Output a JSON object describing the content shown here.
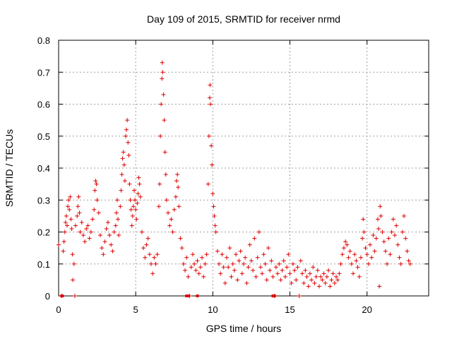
{
  "chart_data": {
    "type": "scatter",
    "title": "Day 109 of 2015, SRMTID for receiver nrmd",
    "xlabel": "GPS time / hours",
    "ylabel": "SRMTID / TECUs",
    "xlim": [
      0,
      24
    ],
    "ylim": [
      0,
      0.8
    ],
    "xticks": [
      0,
      5,
      10,
      15,
      20
    ],
    "xtick_labels": [
      "0",
      "5",
      "10",
      "15",
      "20"
    ],
    "yticks": [
      0,
      0.1,
      0.2,
      0.3,
      0.4,
      0.5,
      0.6,
      0.7,
      0.8
    ],
    "ytick_labels": [
      "0",
      "0.1",
      "0.2",
      "0.3",
      "0.4",
      "0.5",
      "0.6",
      "0.7",
      "0.8"
    ],
    "grid": true,
    "marker": "plus",
    "color": "#e00000",
    "series": [
      {
        "name": "SRMTID",
        "points": [
          [
            0.0,
            0.16
          ],
          [
            0.2,
            0.0
          ],
          [
            0.3,
            0.14
          ],
          [
            0.35,
            0.17
          ],
          [
            0.4,
            0.2
          ],
          [
            0.45,
            0.23
          ],
          [
            0.5,
            0.25
          ],
          [
            0.55,
            0.22
          ],
          [
            0.6,
            0.28
          ],
          [
            0.65,
            0.3
          ],
          [
            0.7,
            0.27
          ],
          [
            0.75,
            0.31
          ],
          [
            0.8,
            0.24
          ],
          [
            0.85,
            0.21
          ],
          [
            0.9,
            0.13
          ],
          [
            0.92,
            0.05
          ],
          [
            1.0,
            0.1
          ],
          [
            1.05,
            0.0
          ],
          [
            1.1,
            0.22
          ],
          [
            1.2,
            0.25
          ],
          [
            1.25,
            0.28
          ],
          [
            1.3,
            0.31
          ],
          [
            1.35,
            0.26
          ],
          [
            1.4,
            0.2
          ],
          [
            1.5,
            0.23
          ],
          [
            1.6,
            0.19
          ],
          [
            1.7,
            0.17
          ],
          [
            1.8,
            0.21
          ],
          [
            1.9,
            0.22
          ],
          [
            2.0,
            0.18
          ],
          [
            2.1,
            0.2
          ],
          [
            2.2,
            0.24
          ],
          [
            2.3,
            0.27
          ],
          [
            2.35,
            0.33
          ],
          [
            2.4,
            0.36
          ],
          [
            2.45,
            0.35
          ],
          [
            2.5,
            0.3
          ],
          [
            2.6,
            0.26
          ],
          [
            2.7,
            0.19
          ],
          [
            2.8,
            0.15
          ],
          [
            2.9,
            0.13
          ],
          [
            3.0,
            0.17
          ],
          [
            3.1,
            0.21
          ],
          [
            3.2,
            0.23
          ],
          [
            3.3,
            0.19
          ],
          [
            3.4,
            0.16
          ],
          [
            3.5,
            0.14
          ],
          [
            3.6,
            0.2
          ],
          [
            3.7,
            0.22
          ],
          [
            3.75,
            0.26
          ],
          [
            3.8,
            0.3
          ],
          [
            3.85,
            0.24
          ],
          [
            3.9,
            0.19
          ],
          [
            4.0,
            0.28
          ],
          [
            4.05,
            0.33
          ],
          [
            4.1,
            0.38
          ],
          [
            4.15,
            0.43
          ],
          [
            4.2,
            0.45
          ],
          [
            4.25,
            0.41
          ],
          [
            4.3,
            0.36
          ],
          [
            4.35,
            0.5
          ],
          [
            4.4,
            0.52
          ],
          [
            4.45,
            0.55
          ],
          [
            4.5,
            0.48
          ],
          [
            4.55,
            0.44
          ],
          [
            4.6,
            0.35
          ],
          [
            4.65,
            0.3
          ],
          [
            4.7,
            0.27
          ],
          [
            4.75,
            0.22
          ],
          [
            4.8,
            0.25
          ],
          [
            4.85,
            0.28
          ],
          [
            4.9,
            0.33
          ],
          [
            4.95,
            0.3
          ],
          [
            5.0,
            0.27
          ],
          [
            5.05,
            0.24
          ],
          [
            5.1,
            0.29
          ],
          [
            5.15,
            0.32
          ],
          [
            5.2,
            0.37
          ],
          [
            5.25,
            0.35
          ],
          [
            5.3,
            0.31
          ],
          [
            5.4,
            0.2
          ],
          [
            5.5,
            0.15
          ],
          [
            5.6,
            0.12
          ],
          [
            5.7,
            0.16
          ],
          [
            5.8,
            0.18
          ],
          [
            5.9,
            0.13
          ],
          [
            6.0,
            0.1
          ],
          [
            6.1,
            0.07
          ],
          [
            6.2,
            0.12
          ],
          [
            6.3,
            0.1
          ],
          [
            6.4,
            0.13
          ],
          [
            6.5,
            0.28
          ],
          [
            6.55,
            0.35
          ],
          [
            6.6,
            0.5
          ],
          [
            6.65,
            0.6
          ],
          [
            6.7,
            0.68
          ],
          [
            6.72,
            0.73
          ],
          [
            6.75,
            0.7
          ],
          [
            6.8,
            0.63
          ],
          [
            6.85,
            0.55
          ],
          [
            6.9,
            0.45
          ],
          [
            6.95,
            0.38
          ],
          [
            7.0,
            0.3
          ],
          [
            7.1,
            0.26
          ],
          [
            7.2,
            0.22
          ],
          [
            7.3,
            0.24
          ],
          [
            7.4,
            0.2
          ],
          [
            7.5,
            0.27
          ],
          [
            7.6,
            0.31
          ],
          [
            7.65,
            0.36
          ],
          [
            7.7,
            0.38
          ],
          [
            7.75,
            0.34
          ],
          [
            7.8,
            0.28
          ],
          [
            7.9,
            0.18
          ],
          [
            8.0,
            0.15
          ],
          [
            8.1,
            0.1
          ],
          [
            8.2,
            0.08
          ],
          [
            8.3,
            0.12
          ],
          [
            8.4,
            0.06
          ],
          [
            8.5,
            0.0
          ],
          [
            8.6,
            0.09
          ],
          [
            8.7,
            0.13
          ],
          [
            8.8,
            0.1
          ],
          [
            8.9,
            0.08
          ],
          [
            9.0,
            0.11
          ],
          [
            9.1,
            0.07
          ],
          [
            9.2,
            0.09
          ],
          [
            9.3,
            0.12
          ],
          [
            9.4,
            0.06
          ],
          [
            9.5,
            0.1
          ],
          [
            9.6,
            0.13
          ],
          [
            9.7,
            0.35
          ],
          [
            9.75,
            0.5
          ],
          [
            9.8,
            0.62
          ],
          [
            9.82,
            0.66
          ],
          [
            9.85,
            0.6
          ],
          [
            9.9,
            0.47
          ],
          [
            9.95,
            0.41
          ],
          [
            10.0,
            0.32
          ],
          [
            10.05,
            0.28
          ],
          [
            10.1,
            0.25
          ],
          [
            10.15,
            0.22
          ],
          [
            10.2,
            0.2
          ],
          [
            10.3,
            0.14
          ],
          [
            10.4,
            0.1
          ],
          [
            10.5,
            0.07
          ],
          [
            10.6,
            0.13
          ],
          [
            10.7,
            0.09
          ],
          [
            10.8,
            0.04
          ],
          [
            10.9,
            0.12
          ],
          [
            11.0,
            0.09
          ],
          [
            11.1,
            0.15
          ],
          [
            11.2,
            0.06
          ],
          [
            11.3,
            0.1
          ],
          [
            11.4,
            0.08
          ],
          [
            11.5,
            0.13
          ],
          [
            11.6,
            0.05
          ],
          [
            11.7,
            0.11
          ],
          [
            11.8,
            0.14
          ],
          [
            11.9,
            0.07
          ],
          [
            12.0,
            0.1
          ],
          [
            12.1,
            0.12
          ],
          [
            12.2,
            0.04
          ],
          [
            12.3,
            0.09
          ],
          [
            12.4,
            0.16
          ],
          [
            12.5,
            0.11
          ],
          [
            12.6,
            0.08
          ],
          [
            12.7,
            0.18
          ],
          [
            12.8,
            0.06
          ],
          [
            12.9,
            0.12
          ],
          [
            13.0,
            0.2
          ],
          [
            13.1,
            0.09
          ],
          [
            13.2,
            0.07
          ],
          [
            13.3,
            0.13
          ],
          [
            13.4,
            0.1
          ],
          [
            13.5,
            0.05
          ],
          [
            13.6,
            0.15
          ],
          [
            13.7,
            0.08
          ],
          [
            13.8,
            0.11
          ],
          [
            13.9,
            0.06
          ],
          [
            14.0,
            0.0
          ],
          [
            14.1,
            0.09
          ],
          [
            14.2,
            0.07
          ],
          [
            14.3,
            0.1
          ],
          [
            14.4,
            0.05
          ],
          [
            14.5,
            0.08
          ],
          [
            14.6,
            0.11
          ],
          [
            14.7,
            0.06
          ],
          [
            14.8,
            0.09
          ],
          [
            14.9,
            0.13
          ],
          [
            15.0,
            0.07
          ],
          [
            15.1,
            0.04
          ],
          [
            15.2,
            0.1
          ],
          [
            15.3,
            0.08
          ],
          [
            15.4,
            0.05
          ],
          [
            15.5,
            0.09
          ],
          [
            15.6,
            0.0
          ],
          [
            15.7,
            0.11
          ],
          [
            15.8,
            0.07
          ],
          [
            15.9,
            0.04
          ],
          [
            16.0,
            0.08
          ],
          [
            16.1,
            0.06
          ],
          [
            16.2,
            0.03
          ],
          [
            16.3,
            0.07
          ],
          [
            16.4,
            0.05
          ],
          [
            16.5,
            0.09
          ],
          [
            16.6,
            0.04
          ],
          [
            16.7,
            0.06
          ],
          [
            16.8,
            0.08
          ],
          [
            16.9,
            0.03
          ],
          [
            17.0,
            0.06
          ],
          [
            17.1,
            0.05
          ],
          [
            17.2,
            0.07
          ],
          [
            17.3,
            0.04
          ],
          [
            17.4,
            0.06
          ],
          [
            17.5,
            0.08
          ],
          [
            17.6,
            0.03
          ],
          [
            17.7,
            0.05
          ],
          [
            17.8,
            0.07
          ],
          [
            17.9,
            0.04
          ],
          [
            18.0,
            0.06
          ],
          [
            18.1,
            0.05
          ],
          [
            18.2,
            0.07
          ],
          [
            18.3,
            0.1
          ],
          [
            18.4,
            0.13
          ],
          [
            18.5,
            0.15
          ],
          [
            18.6,
            0.17
          ],
          [
            18.7,
            0.16
          ],
          [
            18.8,
            0.12
          ],
          [
            18.9,
            0.14
          ],
          [
            19.0,
            0.1
          ],
          [
            19.1,
            0.07
          ],
          [
            19.2,
            0.13
          ],
          [
            19.3,
            0.11
          ],
          [
            19.4,
            0.09
          ],
          [
            19.5,
            0.06
          ],
          [
            19.6,
            0.12
          ],
          [
            19.7,
            0.18
          ],
          [
            19.75,
            0.24
          ],
          [
            19.8,
            0.2
          ],
          [
            19.9,
            0.15
          ],
          [
            20.0,
            0.13
          ],
          [
            20.1,
            0.1
          ],
          [
            20.2,
            0.16
          ],
          [
            20.3,
            0.12
          ],
          [
            20.4,
            0.19
          ],
          [
            20.5,
            0.14
          ],
          [
            20.6,
            0.18
          ],
          [
            20.7,
            0.24
          ],
          [
            20.75,
            0.21
          ],
          [
            20.8,
            0.03
          ],
          [
            20.85,
            0.28
          ],
          [
            20.9,
            0.25
          ],
          [
            21.0,
            0.2
          ],
          [
            21.1,
            0.17
          ],
          [
            21.2,
            0.14
          ],
          [
            21.3,
            0.1
          ],
          [
            21.4,
            0.18
          ],
          [
            21.5,
            0.13
          ],
          [
            21.6,
            0.2
          ],
          [
            21.7,
            0.24
          ],
          [
            21.8,
            0.19
          ],
          [
            21.9,
            0.22
          ],
          [
            22.0,
            0.16
          ],
          [
            22.1,
            0.12
          ],
          [
            22.2,
            0.1
          ],
          [
            22.3,
            0.2
          ],
          [
            22.4,
            0.25
          ],
          [
            22.5,
            0.18
          ],
          [
            22.6,
            0.14
          ],
          [
            22.7,
            0.11
          ],
          [
            22.8,
            0.1
          ]
        ]
      }
    ],
    "zero_markers": [
      0.2,
      0.25,
      8.3,
      8.4,
      9.0,
      13.9,
      14.0
    ]
  }
}
